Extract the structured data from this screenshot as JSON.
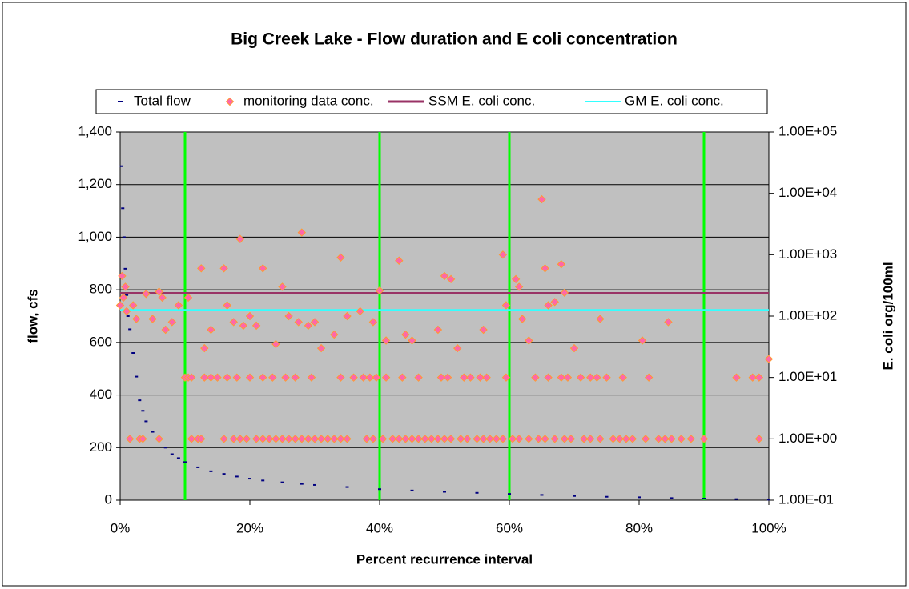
{
  "chart_data": {
    "type": "combo",
    "title": "Big Creek Lake - Flow duration and E coli concentration",
    "x_label": "Percent recurrence interval",
    "y_label": "flow, cfs",
    "y2_label": "E. coli org/100ml",
    "xlim": [
      0,
      100
    ],
    "xticks": [
      {
        "value": 0,
        "label": "0%"
      },
      {
        "value": 20,
        "label": "20%"
      },
      {
        "value": 40,
        "label": "40%"
      },
      {
        "value": 60,
        "label": "60%"
      },
      {
        "value": 80,
        "label": "80%"
      },
      {
        "value": 100,
        "label": "100%"
      }
    ],
    "ylim": [
      0,
      1400
    ],
    "yticks": [
      0,
      200,
      400,
      600,
      800,
      {
        "value": 1000,
        "label": "1,000"
      },
      {
        "value": 1200,
        "label": "1,200"
      },
      {
        "value": 1400,
        "label": "1,400"
      }
    ],
    "y2lim": [
      0.1,
      100000
    ],
    "y2_log": true,
    "y2ticks": [
      {
        "value": 0.1,
        "label": "1.00E-01"
      },
      {
        "value": 1,
        "label": "1.00E+00"
      },
      {
        "value": 10,
        "label": "1.00E+01"
      },
      {
        "value": 100,
        "label": "1.00E+02"
      },
      {
        "value": 1000,
        "label": "1.00E+03"
      },
      {
        "value": 10000,
        "label": "1.00E+04"
      },
      {
        "value": 100000,
        "label": "1.00E+05"
      }
    ],
    "grid": true,
    "legend": "top",
    "zone_lines": {
      "x": [
        10,
        40,
        60,
        90
      ],
      "color": "#00ff00"
    },
    "series": [
      {
        "name": "Total flow",
        "type": "dash",
        "color": "#000080",
        "x": [
          0.2,
          0.4,
          0.6,
          0.8,
          1,
          1.2,
          1.5,
          2,
          2.5,
          3,
          3.5,
          4,
          5,
          6,
          7,
          8,
          9,
          10,
          12,
          14,
          16,
          18,
          20,
          22,
          25,
          28,
          30,
          35,
          40,
          45,
          50,
          55,
          60,
          65,
          70,
          75,
          80,
          85,
          90,
          95,
          100
        ],
        "values": [
          1270,
          1110,
          1000,
          880,
          780,
          700,
          650,
          560,
          470,
          380,
          340,
          300,
          260,
          230,
          200,
          175,
          160,
          145,
          125,
          110,
          100,
          90,
          82,
          75,
          68,
          62,
          58,
          50,
          42,
          37,
          32,
          28,
          24,
          20,
          16,
          13,
          11,
          8,
          6,
          4,
          2
        ]
      },
      {
        "name": "monitoring data conc.",
        "type": "diamond",
        "color": "#ff66aa",
        "axis": "y2",
        "x": [
          1.5,
          3,
          3.5,
          6,
          11,
          12,
          12.5,
          16,
          17.5,
          18.5,
          19.5,
          21,
          22,
          23,
          24,
          25,
          26,
          27,
          28,
          29,
          30,
          31,
          32,
          33,
          34,
          35,
          38,
          39,
          40.5,
          42,
          43,
          44,
          45,
          46,
          47,
          48,
          49,
          50,
          51,
          52.5,
          53.5,
          55,
          56,
          57,
          58,
          59,
          60.5,
          61.5,
          63,
          64.5,
          65.5,
          67,
          68.5,
          69.5,
          71.5,
          72.5,
          74,
          76,
          77,
          78,
          79,
          81,
          83,
          84,
          85,
          86.5,
          88,
          90,
          98.5,
          10,
          10.5,
          11,
          13,
          14,
          15,
          16.5,
          18,
          20,
          22,
          23.5,
          25.5,
          27,
          29.5,
          34,
          36,
          37.5,
          38.5,
          39.5,
          41,
          43.5,
          46,
          49.5,
          50.5,
          53,
          54,
          55.5,
          56.5,
          59.5,
          64,
          66,
          68,
          69,
          71,
          72.5,
          73.5,
          75,
          77.5,
          81.5,
          95,
          97.5,
          98.5,
          0,
          0.3,
          0.5,
          0.8,
          1,
          2,
          2.5,
          4,
          5,
          6,
          6.5,
          7,
          8,
          9,
          10.5,
          12.5,
          13,
          14,
          16,
          16.5,
          17.5,
          18.5,
          19,
          20,
          21,
          22,
          24,
          25,
          26,
          27.5,
          28,
          29,
          30,
          31,
          33,
          34,
          35,
          37,
          39,
          40,
          41,
          43,
          44,
          45,
          49,
          50,
          51,
          52,
          56,
          59,
          59.5,
          61,
          61.5,
          62,
          63,
          65,
          65.5,
          66,
          67,
          68,
          68.5,
          70,
          74,
          80.5,
          84.5,
          100
        ],
        "values": [
          1,
          1,
          1,
          1,
          1,
          1,
          1,
          1,
          1,
          1,
          1,
          1,
          1,
          1,
          1,
          1,
          1,
          1,
          1,
          1,
          1,
          1,
          1,
          1,
          1,
          1,
          1,
          1,
          1,
          1,
          1,
          1,
          1,
          1,
          1,
          1,
          1,
          1,
          1,
          1,
          1,
          1,
          1,
          1,
          1,
          1,
          1,
          1,
          1,
          1,
          1,
          1,
          1,
          1,
          1,
          1,
          1,
          1,
          1,
          1,
          1,
          1,
          1,
          1,
          1,
          1,
          1,
          1,
          1,
          10,
          10,
          10,
          10,
          10,
          10,
          10,
          10,
          10,
          10,
          10,
          10,
          10,
          10,
          10,
          10,
          10,
          10,
          10,
          10,
          10,
          10,
          10,
          10,
          10,
          10,
          10,
          10,
          10,
          10,
          10,
          10,
          10,
          10,
          10,
          10,
          10,
          10,
          10,
          10,
          10,
          10,
          150,
          450,
          200,
          300,
          120,
          150,
          90,
          230,
          90,
          250,
          200,
          60,
          80,
          150,
          200,
          600,
          30,
          60,
          600,
          150,
          80,
          1800,
          70,
          100,
          70,
          600,
          35,
          300,
          100,
          80,
          2300,
          70,
          80,
          30,
          50,
          900,
          100,
          120,
          80,
          260,
          40,
          800,
          50,
          40,
          60,
          450,
          400,
          30,
          60,
          1000,
          150,
          400,
          300,
          90,
          40,
          8000,
          600,
          150,
          170,
          700,
          240,
          30,
          90,
          40,
          80,
          20
        ]
      },
      {
        "name": "SSM E. coli conc.",
        "type": "line",
        "color": "#993366",
        "axis": "y2",
        "x": [
          0,
          100
        ],
        "values": [
          235,
          235
        ]
      },
      {
        "name": "GM E. coli conc.",
        "type": "line",
        "color": "#33ffff",
        "axis": "y2",
        "x": [
          0,
          50,
          100
        ],
        "values": [
          126,
          126,
          126
        ]
      }
    ]
  }
}
